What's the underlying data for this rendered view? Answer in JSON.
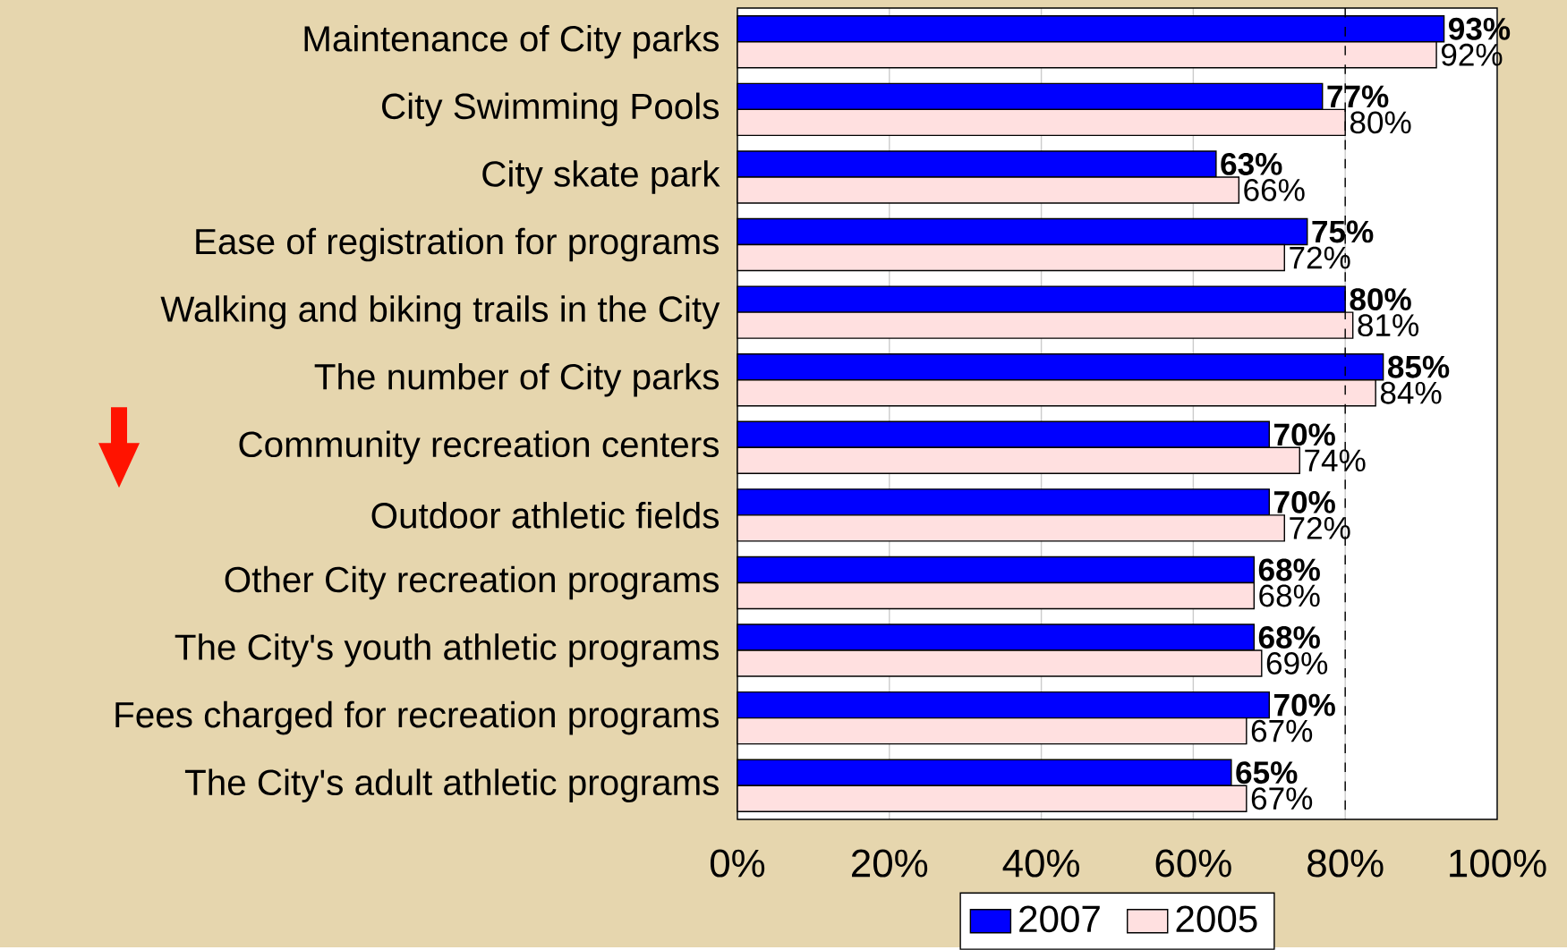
{
  "chart_data": {
    "type": "bar",
    "orientation": "horizontal",
    "categories": [
      "Maintenance of City parks",
      "City Swimming Pools",
      "City skate park",
      "Ease of registration for programs",
      "Walking and biking trails in the City",
      "The number of City parks",
      "Community recreation centers",
      "Outdoor athletic fields",
      "Other City recreation programs",
      "The City's youth athletic programs",
      "Fees charged for recreation programs",
      "The City's adult athletic programs"
    ],
    "series": [
      {
        "name": "2007",
        "color": "#0000ff",
        "values": [
          93,
          77,
          63,
          75,
          80,
          85,
          70,
          70,
          68,
          68,
          70,
          65
        ],
        "value_labels": [
          "93%",
          "77%",
          "63%",
          "75%",
          "80%",
          "85%",
          "70%",
          "70%",
          "68%",
          "68%",
          "70%",
          "65%"
        ]
      },
      {
        "name": "2005",
        "color": "#ffe0e0",
        "values": [
          92,
          80,
          66,
          72,
          81,
          84,
          74,
          72,
          68,
          69,
          67,
          67
        ],
        "value_labels": [
          "92%",
          "80%",
          "66%",
          "72%",
          "81%",
          "84%",
          "74%",
          "72%",
          "68%",
          "69%",
          "67%",
          "67%"
        ]
      }
    ],
    "xlim": [
      0,
      100
    ],
    "xticks": [
      {
        "value": 0,
        "label": "0%"
      },
      {
        "value": 20,
        "label": "20%"
      },
      {
        "value": 40,
        "label": "40%"
      },
      {
        "value": 60,
        "label": "60%"
      },
      {
        "value": 80,
        "label": "80%"
      },
      {
        "value": 100,
        "label": "100%"
      }
    ],
    "grid": "x",
    "legend": "bottom",
    "ref_lines": [
      {
        "axis": "x",
        "value": 80,
        "line_style": "dashed",
        "color": "#000000"
      }
    ]
  }
}
